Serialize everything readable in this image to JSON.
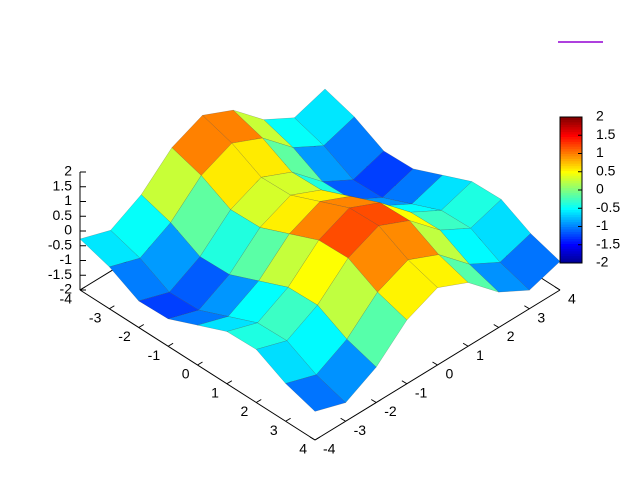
{
  "chart_data": {
    "type": "surface",
    "x": [
      -4,
      -3,
      -2,
      -1,
      0,
      1,
      2,
      3,
      4
    ],
    "y": [
      -4,
      -3,
      -2,
      -1,
      0,
      1,
      2,
      3,
      4
    ],
    "z": [
      [
        -0.27,
        -0.61,
        -0.04,
        0.92,
        1.38,
        0.92,
        -0.04,
        -0.61,
        -0.27
      ],
      [
        -0.58,
        -0.92,
        -0.35,
        0.61,
        1.07,
        0.61,
        -0.35,
        -0.92,
        -0.58
      ],
      [
        -1.1,
        -1.44,
        -0.87,
        0.09,
        0.55,
        0.09,
        -0.87,
        -1.44,
        -1.1
      ],
      [
        -1.07,
        -1.41,
        -0.84,
        0.12,
        0.58,
        0.12,
        -0.84,
        -1.41,
        -1.07
      ],
      [
        -0.65,
        -0.99,
        -0.42,
        0.54,
        1,
        0.54,
        -0.42,
        -0.99,
        -0.65
      ],
      [
        -0.23,
        -0.57,
        0,
        0.96,
        1.42,
        0.96,
        0,
        -0.57,
        -0.23
      ],
      [
        -0.2,
        -0.54,
        0.03,
        0.99,
        1.45,
        0.99,
        0.03,
        -0.54,
        -0.2
      ],
      [
        -0.72,
        -1.06,
        -0.49,
        0.47,
        0.93,
        0.47,
        -0.49,
        -1.06,
        -0.72
      ],
      [
        -1.03,
        -1.37,
        -0.8,
        0.16,
        0.62,
        0.16,
        -0.8,
        -1.37,
        -1.03
      ]
    ],
    "xlim": [
      -4,
      4
    ],
    "ylim": [
      -4,
      4
    ],
    "zlim": [
      -2,
      2
    ],
    "xticks": [
      -4,
      -3,
      -2,
      -1,
      0,
      1,
      2,
      3,
      4
    ],
    "yticks": [
      -4,
      -3,
      -2,
      -1,
      0,
      1,
      2,
      3,
      4
    ],
    "zticks": [
      -2,
      -1.5,
      -1,
      -0.5,
      0,
      0.5,
      1,
      1.5,
      2
    ],
    "cblim": [
      -2,
      2
    ],
    "cbticks": [
      -2,
      -1.5,
      -1,
      -0.5,
      0,
      0.5,
      1,
      1.5,
      2
    ],
    "colormap": [
      "#00008f",
      "#0000ff",
      "#0080ff",
      "#00ffff",
      "#80ff80",
      "#ffff00",
      "#ff8000",
      "#ff0000",
      "#800000"
    ]
  }
}
